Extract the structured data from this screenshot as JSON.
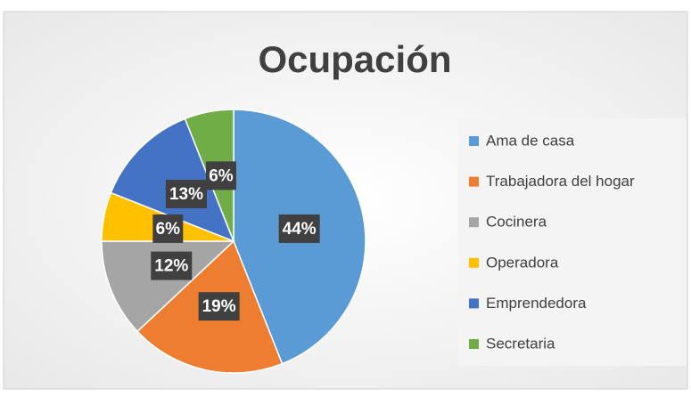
{
  "chart_data": {
    "type": "pie",
    "title": "Ocupación",
    "categories": [
      "Ama de casa",
      "Trabajadora del hogar",
      "Cocinera",
      "Operadora",
      "Emprendedora",
      "Secretaria"
    ],
    "values": [
      44,
      19,
      12,
      6,
      13,
      6
    ],
    "value_labels": [
      "44%",
      "19%",
      "12%",
      "6%",
      "13%",
      "6%"
    ],
    "colors": [
      "#5b9bd5",
      "#ed7d31",
      "#a5a5a5",
      "#ffc000",
      "#4472c4",
      "#70ad47"
    ],
    "legend": "right"
  }
}
